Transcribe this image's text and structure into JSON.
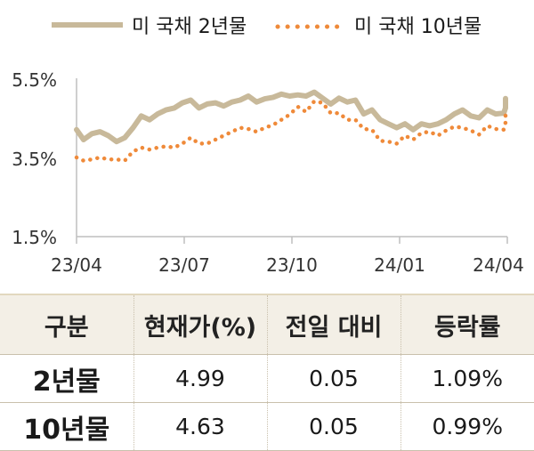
{
  "chart_data": {
    "type": "line",
    "x_ticks": [
      "23/04",
      "23/07",
      "23/10",
      "24/01",
      "24/04"
    ],
    "y_ticks": [
      "5.5%",
      "3.5%",
      "1.5%"
    ],
    "ylim": [
      1.5,
      5.5
    ],
    "xlim": [
      "2023-04-01",
      "2024-04-01"
    ],
    "series": [
      {
        "name": "미 국채 2년물",
        "color": "#c8b99a",
        "style": "solid",
        "points": [
          [
            "2023-04-01",
            4.2
          ],
          [
            "2023-04-07",
            3.95
          ],
          [
            "2023-04-14",
            4.1
          ],
          [
            "2023-04-21",
            4.15
          ],
          [
            "2023-04-28",
            4.05
          ],
          [
            "2023-05-05",
            3.9
          ],
          [
            "2023-05-12",
            4.0
          ],
          [
            "2023-05-19",
            4.25
          ],
          [
            "2023-05-26",
            4.55
          ],
          [
            "2023-06-02",
            4.45
          ],
          [
            "2023-06-09",
            4.6
          ],
          [
            "2023-06-16",
            4.7
          ],
          [
            "2023-06-23",
            4.75
          ],
          [
            "2023-06-30",
            4.88
          ],
          [
            "2023-07-07",
            4.95
          ],
          [
            "2023-07-14",
            4.75
          ],
          [
            "2023-07-21",
            4.85
          ],
          [
            "2023-07-28",
            4.88
          ],
          [
            "2023-08-04",
            4.8
          ],
          [
            "2023-08-11",
            4.9
          ],
          [
            "2023-08-18",
            4.95
          ],
          [
            "2023-08-25",
            5.05
          ],
          [
            "2023-09-01",
            4.9
          ],
          [
            "2023-09-08",
            4.98
          ],
          [
            "2023-09-15",
            5.02
          ],
          [
            "2023-09-22",
            5.1
          ],
          [
            "2023-09-29",
            5.05
          ],
          [
            "2023-10-06",
            5.08
          ],
          [
            "2023-10-13",
            5.05
          ],
          [
            "2023-10-20",
            5.15
          ],
          [
            "2023-10-27",
            5.0
          ],
          [
            "2023-11-03",
            4.85
          ],
          [
            "2023-11-10",
            5.0
          ],
          [
            "2023-11-17",
            4.9
          ],
          [
            "2023-11-24",
            4.95
          ],
          [
            "2023-12-01",
            4.6
          ],
          [
            "2023-12-08",
            4.7
          ],
          [
            "2023-12-15",
            4.45
          ],
          [
            "2023-12-22",
            4.35
          ],
          [
            "2023-12-29",
            4.25
          ],
          [
            "2024-01-05",
            4.35
          ],
          [
            "2024-01-12",
            4.2
          ],
          [
            "2024-01-19",
            4.35
          ],
          [
            "2024-01-26",
            4.3
          ],
          [
            "2024-02-02",
            4.35
          ],
          [
            "2024-02-09",
            4.45
          ],
          [
            "2024-02-16",
            4.6
          ],
          [
            "2024-02-23",
            4.7
          ],
          [
            "2024-03-01",
            4.55
          ],
          [
            "2024-03-08",
            4.5
          ],
          [
            "2024-03-15",
            4.7
          ],
          [
            "2024-03-22",
            4.6
          ],
          [
            "2024-03-29",
            4.62
          ],
          [
            "2024-04-05",
            4.75
          ],
          [
            "2024-04-12",
            4.9
          ],
          [
            "2024-04-19",
            4.99
          ]
        ]
      },
      {
        "name": "미 국채 10년물",
        "color": "#ef8a3a",
        "style": "dotted",
        "points": [
          [
            "2023-04-01",
            3.5
          ],
          [
            "2023-04-07",
            3.42
          ],
          [
            "2023-04-14",
            3.45
          ],
          [
            "2023-04-21",
            3.5
          ],
          [
            "2023-04-28",
            3.45
          ],
          [
            "2023-05-05",
            3.45
          ],
          [
            "2023-05-12",
            3.42
          ],
          [
            "2023-05-19",
            3.65
          ],
          [
            "2023-05-26",
            3.75
          ],
          [
            "2023-06-02",
            3.7
          ],
          [
            "2023-06-09",
            3.75
          ],
          [
            "2023-06-16",
            3.78
          ],
          [
            "2023-06-23",
            3.75
          ],
          [
            "2023-06-30",
            3.85
          ],
          [
            "2023-07-07",
            4.0
          ],
          [
            "2023-07-14",
            3.85
          ],
          [
            "2023-07-21",
            3.85
          ],
          [
            "2023-07-28",
            3.95
          ],
          [
            "2023-08-04",
            4.05
          ],
          [
            "2023-08-11",
            4.15
          ],
          [
            "2023-08-18",
            4.25
          ],
          [
            "2023-08-25",
            4.22
          ],
          [
            "2023-09-01",
            4.15
          ],
          [
            "2023-09-08",
            4.25
          ],
          [
            "2023-09-15",
            4.32
          ],
          [
            "2023-09-22",
            4.45
          ],
          [
            "2023-09-29",
            4.58
          ],
          [
            "2023-10-06",
            4.78
          ],
          [
            "2023-10-13",
            4.65
          ],
          [
            "2023-10-20",
            4.92
          ],
          [
            "2023-10-27",
            4.88
          ],
          [
            "2023-11-03",
            4.62
          ],
          [
            "2023-11-10",
            4.62
          ],
          [
            "2023-11-17",
            4.45
          ],
          [
            "2023-11-24",
            4.45
          ],
          [
            "2023-12-01",
            4.22
          ],
          [
            "2023-12-08",
            4.2
          ],
          [
            "2023-12-15",
            3.92
          ],
          [
            "2023-12-22",
            3.9
          ],
          [
            "2023-12-29",
            3.85
          ],
          [
            "2024-01-05",
            4.05
          ],
          [
            "2024-01-12",
            3.95
          ],
          [
            "2024-01-19",
            4.12
          ],
          [
            "2024-01-26",
            4.15
          ],
          [
            "2024-02-02",
            4.05
          ],
          [
            "2024-02-09",
            4.18
          ],
          [
            "2024-02-16",
            4.28
          ],
          [
            "2024-02-23",
            4.25
          ],
          [
            "2024-03-01",
            4.18
          ],
          [
            "2024-03-08",
            4.08
          ],
          [
            "2024-03-15",
            4.3
          ],
          [
            "2024-03-22",
            4.22
          ],
          [
            "2024-03-29",
            4.2
          ],
          [
            "2024-04-05",
            4.38
          ],
          [
            "2024-04-12",
            4.55
          ],
          [
            "2024-04-19",
            4.63
          ]
        ]
      }
    ]
  },
  "table": {
    "headers": [
      "구분",
      "현재가(%)",
      "전일 대비",
      "등락률"
    ],
    "rows": [
      {
        "label": "2년물",
        "price": "4.99",
        "change": "0.05",
        "rate": "1.09%"
      },
      {
        "label": "10년물",
        "price": "4.63",
        "change": "0.05",
        "rate": "0.99%"
      }
    ]
  }
}
